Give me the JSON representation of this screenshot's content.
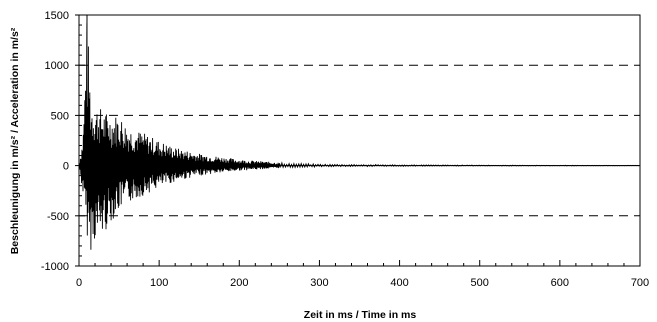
{
  "chart_data": {
    "type": "line",
    "title": "",
    "xlabel": "Zeit in ms / Time in ms",
    "ylabel": "Beschleunigung in m/s² / Acceleration in m/s²",
    "xlim": [
      0,
      700
    ],
    "ylim": [
      -1000,
      1500
    ],
    "xticks": [
      "0",
      "100",
      "200",
      "300",
      "400",
      "500",
      "600",
      "700"
    ],
    "yticks": [
      "1500",
      "1000",
      "500",
      "0",
      "-500",
      "-1000"
    ],
    "grid": "dashed horizontal lines at 1000, 500, -500",
    "series": [
      {
        "color": "#000000",
        "envelope": {
          "x": [
            0,
            5,
            10,
            15,
            20,
            30,
            40,
            50,
            60,
            80,
            100,
            120,
            150,
            200,
            250,
            300,
            400,
            500,
            600,
            700
          ],
          "y_max": [
            0,
            300,
            1500,
            680,
            620,
            560,
            500,
            520,
            400,
            330,
            250,
            180,
            120,
            60,
            30,
            15,
            8,
            5,
            3,
            2
          ],
          "y_min": [
            0,
            -300,
            -700,
            -850,
            -750,
            -700,
            -560,
            -450,
            -380,
            -300,
            -220,
            -160,
            -100,
            -50,
            -25,
            -12,
            -7,
            -4,
            -3,
            -2
          ]
        }
      }
    ]
  }
}
